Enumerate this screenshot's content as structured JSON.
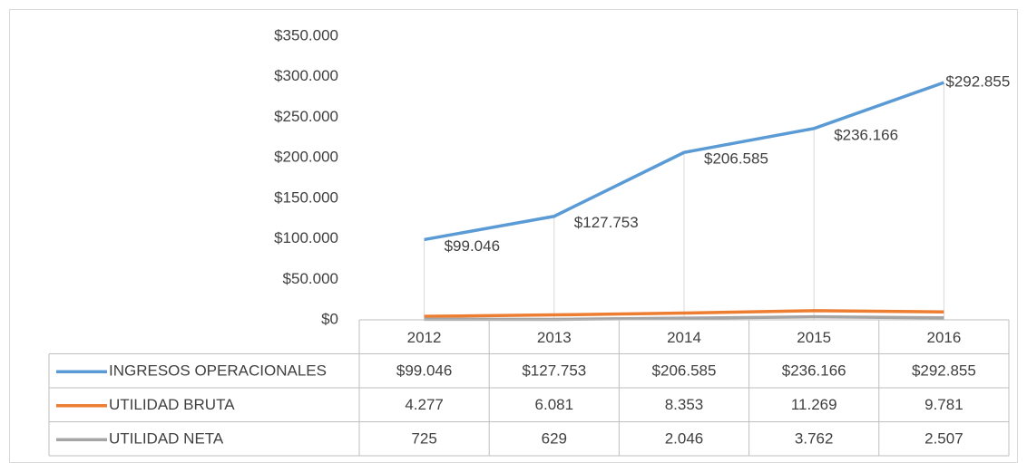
{
  "chart_data": {
    "type": "line",
    "categories": [
      "2012",
      "2013",
      "2014",
      "2015",
      "2016"
    ],
    "series": [
      {
        "name": "INGRESOS OPERACIONALES",
        "color": "#5b9bd5",
        "values": [
          99046,
          127753,
          206585,
          236166,
          292855
        ],
        "value_labels": [
          "$99.046",
          "$127.753",
          "$206.585",
          "$236.166",
          "$292.855"
        ],
        "show_labels": true
      },
      {
        "name": "UTILIDAD BRUTA",
        "color": "#ed7d31",
        "values": [
          4277,
          6081,
          8353,
          11269,
          9781
        ],
        "value_labels": [
          "4.277",
          "6.081",
          "8.353",
          "11.269",
          "9.781"
        ]
      },
      {
        "name": "UTILIDAD NETA",
        "color": "#a5a5a5",
        "values": [
          725,
          629,
          2046,
          3762,
          2507
        ],
        "value_labels": [
          "725",
          "629",
          "2.046",
          "3.762",
          "2.507"
        ]
      }
    ],
    "ylim": [
      0,
      350000
    ],
    "yticks": [
      {
        "value": 0,
        "label": "$0"
      },
      {
        "value": 50000,
        "label": "$50.000"
      },
      {
        "value": 100000,
        "label": "$100.000"
      },
      {
        "value": 150000,
        "label": "$150.000"
      },
      {
        "value": 200000,
        "label": "$200.000"
      },
      {
        "value": 250000,
        "label": "$250.000"
      },
      {
        "value": 300000,
        "label": "$300.000"
      },
      {
        "value": 350000,
        "label": "$350.000"
      }
    ],
    "drop_lines": true,
    "data_table": true
  }
}
